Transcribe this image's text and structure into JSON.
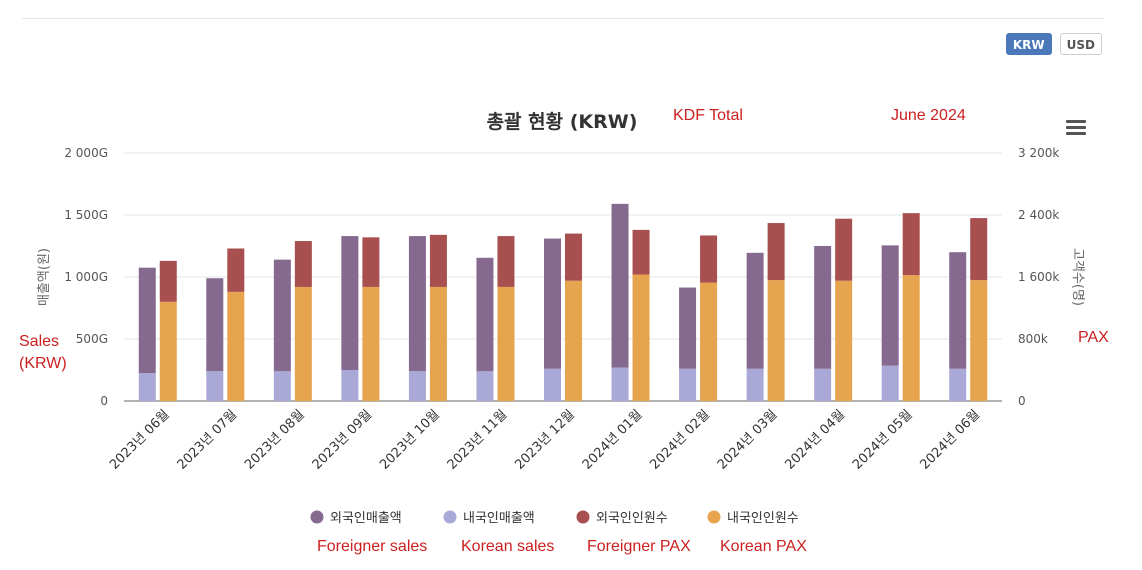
{
  "currency": {
    "options": [
      "KRW",
      "USD"
    ],
    "selected": "KRW"
  },
  "chart_data": {
    "type": "bar",
    "title": "총괄 현황 (KRW)",
    "y_left_label": "매출액(원)",
    "y_right_label": "고객수(명)",
    "y_left_ticks": [
      "0",
      "500G",
      "1 000G",
      "1 500G",
      "2 000G"
    ],
    "y_right_ticks": [
      "0",
      "800k",
      "1 600k",
      "2 400k",
      "3 200k"
    ],
    "ylim_left": [
      0,
      2000
    ],
    "ylim_right": [
      0,
      3200
    ],
    "categories": [
      "2023년 06월",
      "2023년 07월",
      "2023년 08월",
      "2023년 09월",
      "2023년 10월",
      "2023년 11월",
      "2023년 12월",
      "2024년 01월",
      "2024년 02월",
      "2024년 03월",
      "2024년 04월",
      "2024년 05월",
      "2024년 06월"
    ],
    "stacks": [
      {
        "axis": "left",
        "unit": "G KRW",
        "series": [
          {
            "name": "외국인매출액",
            "color": "#86698f",
            "values": [
              850,
              750,
              900,
              1080,
              1090,
              915,
              1050,
              1320,
              655,
              935,
              990,
              970,
              940
            ]
          },
          {
            "name": "내국인매출액",
            "color": "#a9a8d6",
            "values": [
              225,
              240,
              240,
              250,
              240,
              240,
              260,
              270,
              260,
              260,
              260,
              285,
              260
            ]
          }
        ]
      },
      {
        "axis": "right",
        "unit": "k",
        "series": [
          {
            "name": "외국인인원수",
            "color": "#a84f4f",
            "values": [
              528,
              560,
              592,
              640,
              672,
              656,
              608,
              576,
              608,
              736,
              800,
              800,
              800
            ]
          },
          {
            "name": "내국인인원수",
            "color": "#e6a44f",
            "values": [
              1280,
              1408,
              1472,
              1472,
              1472,
              1472,
              1552,
              1632,
              1528,
              1560,
              1552,
              1624,
              1560
            ]
          }
        ]
      }
    ],
    "grid": true,
    "legend_position": "bottom"
  },
  "annotations": {
    "title_translation": "KDF Total",
    "date": "June 2024",
    "y_left_translation": [
      "Sales",
      "(KRW)"
    ],
    "y_right_translation": "PAX",
    "legend_translations": [
      "Foreigner sales",
      "Korean sales",
      "Foreigner PAX",
      "Korean PAX"
    ]
  }
}
